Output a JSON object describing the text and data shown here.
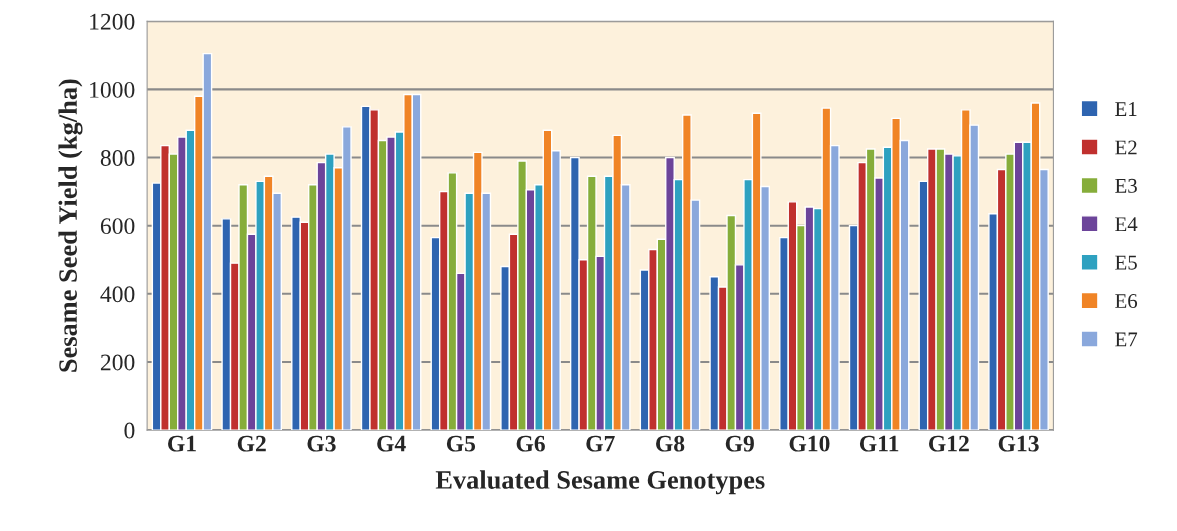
{
  "chart_data": {
    "type": "bar",
    "xlabel": "Evaluated Sesame Genotypes",
    "ylabel": "Sesame Seed Yield (kg/ha)",
    "categories": [
      "G1",
      "G2",
      "G3",
      "G4",
      "G5",
      "G6",
      "G7",
      "G8",
      "G9",
      "G10",
      "G11",
      "G12",
      "G13"
    ],
    "series": [
      {
        "name": "E1",
        "color": "#2e64b0",
        "values": [
          725,
          620,
          625,
          950,
          565,
          480,
          800,
          470,
          450,
          565,
          600,
          730,
          635
        ]
      },
      {
        "name": "E2",
        "color": "#c0302e",
        "values": [
          835,
          490,
          610,
          940,
          700,
          575,
          500,
          530,
          420,
          670,
          785,
          825,
          765
        ]
      },
      {
        "name": "E3",
        "color": "#86ad3a",
        "values": [
          810,
          720,
          720,
          850,
          755,
          790,
          745,
          560,
          630,
          600,
          825,
          825,
          810
        ]
      },
      {
        "name": "E4",
        "color": "#6c449a",
        "values": [
          860,
          575,
          785,
          860,
          460,
          705,
          510,
          800,
          485,
          655,
          740,
          810,
          845
        ]
      },
      {
        "name": "E5",
        "color": "#2ea1c0",
        "values": [
          880,
          730,
          810,
          875,
          695,
          720,
          745,
          735,
          735,
          650,
          830,
          805,
          845
        ]
      },
      {
        "name": "E6",
        "color": "#f08426",
        "values": [
          980,
          745,
          770,
          985,
          815,
          880,
          865,
          925,
          930,
          945,
          915,
          940,
          960
        ]
      },
      {
        "name": "E7",
        "color": "#8aa8dc",
        "values": [
          1105,
          695,
          890,
          985,
          695,
          820,
          720,
          675,
          715,
          835,
          850,
          895,
          765
        ]
      }
    ],
    "ylim": [
      0,
      1200
    ],
    "yticks": [
      0,
      200,
      400,
      600,
      800,
      1000,
      1200
    ],
    "grid": "y",
    "legend": "right"
  }
}
